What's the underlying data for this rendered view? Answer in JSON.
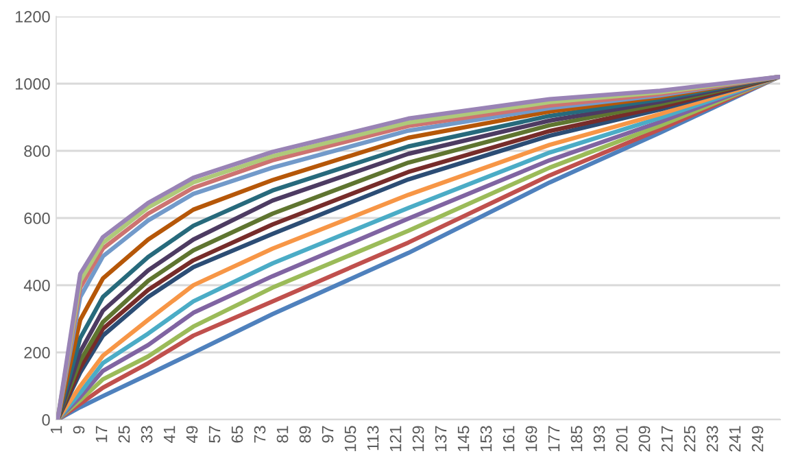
{
  "chart_data": {
    "type": "line",
    "x": [
      1,
      9,
      17,
      33,
      49,
      77,
      125,
      175,
      214,
      256
    ],
    "xlim": [
      0.5,
      256.5
    ],
    "xticks": [
      1,
      9,
      17,
      25,
      33,
      41,
      49,
      57,
      65,
      73,
      81,
      89,
      97,
      105,
      113,
      121,
      129,
      137,
      145,
      153,
      161,
      169,
      177,
      185,
      193,
      201,
      209,
      217,
      225,
      233,
      241,
      249
    ],
    "ylim": [
      0,
      1200
    ],
    "yticks": [
      0,
      200,
      400,
      600,
      800,
      1000,
      1200
    ],
    "grid": "y",
    "marker": "none",
    "line_style": "solid",
    "series": [
      {
        "color": "#4f81bd",
        "values": [
          0,
          37,
          70,
          134,
          199,
          314,
          496,
          706,
          854,
          1020
        ]
      },
      {
        "color": "#c0504d",
        "values": [
          0,
          47,
          95,
          168,
          250,
          352,
          527,
          727,
          864,
          1020
        ]
      },
      {
        "color": "#9bbb59",
        "values": [
          0,
          58,
          120,
          188,
          277,
          393,
          562,
          750,
          875,
          1020
        ]
      },
      {
        "color": "#8064a2",
        "values": [
          0,
          68,
          145,
          222,
          318,
          427,
          598,
          772,
          886,
          1020
        ]
      },
      {
        "color": "#4bacc6",
        "values": [
          0,
          80,
          168,
          256,
          352,
          465,
          630,
          795,
          898,
          1020
        ]
      },
      {
        "color": "#f79646",
        "values": [
          0,
          100,
          190,
          297,
          400,
          509,
          669,
          818,
          909,
          1020
        ]
      },
      {
        "color": "#2c4d75",
        "values": [
          0,
          140,
          250,
          365,
          454,
          553,
          715,
          845,
          923,
          1020
        ]
      },
      {
        "color": "#772c2a",
        "values": [
          0,
          154,
          270,
          386,
          474,
          581,
          737,
          859,
          930,
          1020
        ]
      },
      {
        "color": "#5f7530",
        "values": [
          0,
          175,
          290,
          413,
          504,
          613,
          765,
          876,
          939,
          1020
        ]
      },
      {
        "color": "#4d3b62",
        "values": [
          0,
          202,
          324,
          444,
          536,
          652,
          791,
          890,
          946,
          1020
        ]
      },
      {
        "color": "#276a7c",
        "values": [
          0,
          243,
          365,
          484,
          577,
          682,
          813,
          904,
          953,
          1020
        ]
      },
      {
        "color": "#b65708",
        "values": [
          0,
          297,
          420,
          536,
          625,
          713,
          839,
          917,
          960,
          1020
        ]
      },
      {
        "color": "#729aca",
        "values": [
          0,
          365,
          486,
          593,
          672,
          750,
          860,
          927,
          965,
          1020
        ]
      },
      {
        "color": "#cd7371",
        "values": [
          0,
          393,
          509,
          613,
          690,
          772,
          874,
          935,
          969,
          1020
        ]
      },
      {
        "color": "#afc97a",
        "values": [
          0,
          413,
          526,
          631,
          706,
          784,
          884,
          945,
          974,
          1020
        ]
      },
      {
        "color": "#9983b5",
        "values": [
          0,
          434,
          543,
          645,
          720,
          797,
          896,
          954,
          979,
          1020
        ]
      }
    ]
  }
}
